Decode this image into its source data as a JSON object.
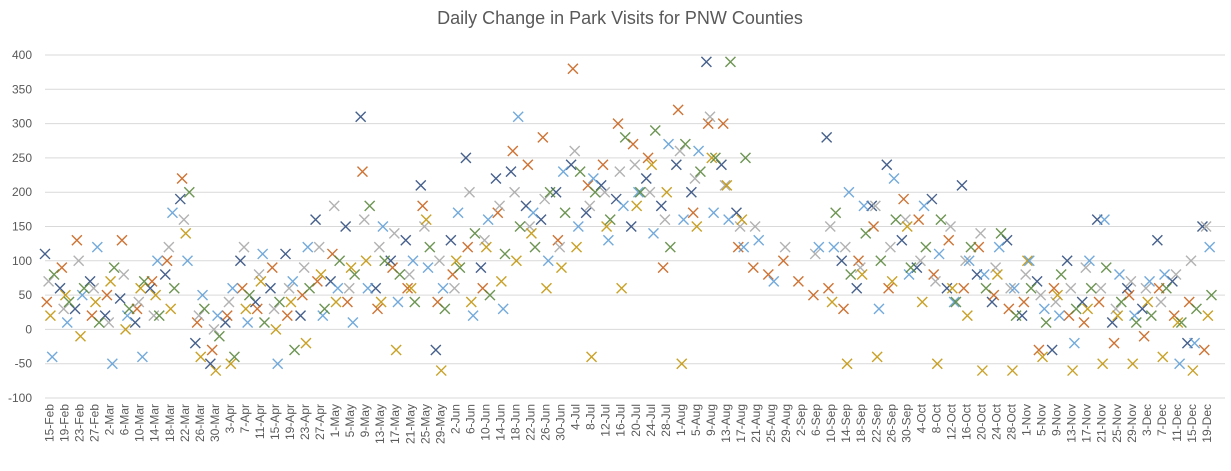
{
  "chart_data": {
    "type": "scatter",
    "title": "Daily Change in Park Visits for PNW Counties",
    "categories": [
      "15-Feb",
      "19-Feb",
      "23-Feb",
      "27-Feb",
      "2-Mar",
      "6-Mar",
      "10-Mar",
      "14-Mar",
      "18-Mar",
      "22-Mar",
      "26-Mar",
      "30-Mar",
      "3-Apr",
      "7-Apr",
      "11-Apr",
      "15-Apr",
      "19-Apr",
      "23-Apr",
      "27-Apr",
      "1-May",
      "5-May",
      "9-May",
      "13-May",
      "17-May",
      "21-May",
      "25-May",
      "29-May",
      "2-Jun",
      "6-Jun",
      "10-Jun",
      "14-Jun",
      "18-Jun",
      "22-Jun",
      "26-Jun",
      "30-Jun",
      "4-Jul",
      "8-Jul",
      "12-Jul",
      "16-Jul",
      "20-Jul",
      "24-Jul",
      "28-Jul",
      "1-Aug",
      "5-Aug",
      "9-Aug",
      "13-Aug",
      "17-Aug",
      "21-Aug",
      "25-Aug",
      "29-Aug",
      "2-Sep",
      "6-Sep",
      "10-Sep",
      "14-Sep",
      "18-Sep",
      "22-Sep",
      "26-Sep",
      "30-Sep",
      "4-Oct",
      "8-Oct",
      "12-Oct",
      "16-Oct",
      "20-Oct",
      "24-Oct",
      "28-Oct",
      "1-Nov",
      "5-Nov",
      "9-Nov",
      "13-Nov",
      "17-Nov",
      "21-Nov",
      "25-Nov",
      "29-Nov",
      "3-Dec",
      "7-Dec",
      "11-Dec",
      "15-Dec",
      "19-Dec"
    ],
    "series": [
      {
        "color": "#264478",
        "values": [
          110,
          60,
          30,
          70,
          20,
          45,
          10,
          60,
          80,
          190,
          -20,
          -50,
          10,
          100,
          40,
          60,
          110,
          20,
          160,
          70,
          150,
          310,
          60,
          100,
          130,
          210,
          -30,
          130,
          250,
          90,
          220,
          230,
          180,
          160,
          200,
          240,
          170,
          210,
          190,
          150,
          220,
          180,
          240,
          200,
          390,
          240,
          170,
          null,
          null,
          null,
          null,
          null,
          280,
          100,
          60,
          180,
          240,
          130,
          90,
          190,
          60,
          210,
          80,
          40,
          130,
          20,
          70,
          -30,
          100,
          40,
          160,
          10,
          60,
          30,
          130,
          70,
          -20,
          150
        ]
      },
      {
        "color": "#c55a11",
        "values": [
          40,
          90,
          130,
          20,
          50,
          130,
          30,
          70,
          100,
          220,
          10,
          -30,
          20,
          60,
          30,
          90,
          20,
          50,
          70,
          110,
          40,
          230,
          30,
          90,
          60,
          180,
          40,
          80,
          120,
          60,
          170,
          260,
          240,
          280,
          130,
          380,
          210,
          240,
          300,
          270,
          250,
          90,
          320,
          170,
          300,
          300,
          120,
          90,
          80,
          100,
          70,
          50,
          60,
          30,
          100,
          150,
          60,
          190,
          160,
          80,
          130,
          60,
          120,
          50,
          30,
          40,
          -30,
          60,
          20,
          10,
          40,
          -20,
          50,
          -10,
          60,
          20,
          40,
          -30
        ]
      },
      {
        "color": "#a5a5a5",
        "values": [
          70,
          30,
          100,
          60,
          10,
          80,
          40,
          20,
          120,
          160,
          20,
          0,
          40,
          120,
          80,
          30,
          60,
          90,
          120,
          180,
          60,
          160,
          120,
          140,
          80,
          150,
          100,
          60,
          200,
          130,
          180,
          200,
          150,
          190,
          120,
          260,
          180,
          200,
          230,
          240,
          200,
          160,
          260,
          220,
          310,
          210,
          150,
          150,
          null,
          120,
          null,
          110,
          150,
          120,
          90,
          180,
          120,
          160,
          100,
          70,
          150,
          100,
          140,
          90,
          60,
          80,
          50,
          40,
          60,
          90,
          60,
          30,
          70,
          60,
          40,
          80,
          100,
          150
        ]
      },
      {
        "color": "#bf9000",
        "values": [
          20,
          50,
          -10,
          40,
          70,
          0,
          60,
          50,
          30,
          140,
          -40,
          -60,
          -50,
          30,
          70,
          0,
          40,
          -20,
          80,
          40,
          90,
          100,
          40,
          -30,
          60,
          160,
          -60,
          100,
          40,
          120,
          70,
          100,
          140,
          60,
          90,
          120,
          -40,
          150,
          60,
          180,
          240,
          200,
          -50,
          150,
          250,
          210,
          160,
          null,
          null,
          null,
          null,
          null,
          40,
          -50,
          80,
          -40,
          70,
          150,
          40,
          -50,
          60,
          20,
          -60,
          80,
          -60,
          100,
          -40,
          50,
          -60,
          30,
          -50,
          20,
          -50,
          40,
          -40,
          10,
          -60,
          20
        ]
      },
      {
        "color": "#5b9bd5",
        "values": [
          -40,
          10,
          50,
          120,
          -50,
          20,
          -40,
          100,
          170,
          100,
          50,
          20,
          60,
          10,
          110,
          -50,
          70,
          120,
          20,
          60,
          10,
          60,
          150,
          40,
          100,
          90,
          60,
          170,
          20,
          160,
          30,
          310,
          170,
          100,
          230,
          150,
          220,
          130,
          180,
          200,
          140,
          270,
          160,
          260,
          170,
          160,
          120,
          130,
          70,
          null,
          null,
          120,
          120,
          200,
          180,
          30,
          220,
          80,
          180,
          110,
          40,
          100,
          80,
          120,
          60,
          100,
          30,
          20,
          -20,
          100,
          160,
          80,
          20,
          70,
          80,
          -50,
          -20,
          120
        ]
      },
      {
        "color": "#548235",
        "values": [
          80,
          40,
          60,
          10,
          90,
          30,
          70,
          20,
          60,
          200,
          30,
          -10,
          -40,
          50,
          10,
          40,
          -30,
          60,
          30,
          100,
          80,
          180,
          100,
          80,
          40,
          120,
          30,
          90,
          140,
          50,
          110,
          150,
          120,
          200,
          170,
          230,
          200,
          160,
          280,
          200,
          290,
          120,
          270,
          230,
          250,
          390,
          250,
          null,
          null,
          null,
          null,
          null,
          170,
          80,
          140,
          100,
          160,
          90,
          120,
          160,
          40,
          120,
          60,
          140,
          20,
          60,
          10,
          80,
          30,
          60,
          90,
          40,
          10,
          20,
          60,
          10,
          30,
          50
        ]
      }
    ],
    "ylim": [
      -100,
      400
    ],
    "yticks": [
      -100,
      -50,
      0,
      50,
      100,
      150,
      200,
      250,
      300,
      350,
      400
    ],
    "grid": true
  }
}
